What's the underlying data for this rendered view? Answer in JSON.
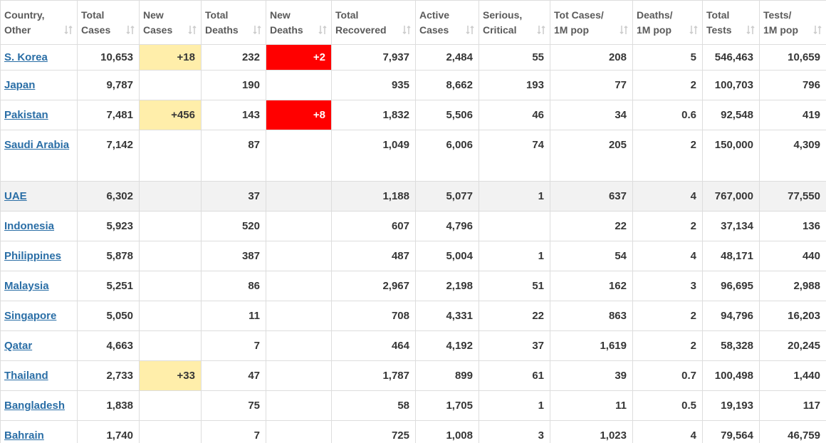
{
  "table": {
    "headers": [
      [
        "Country,",
        "Other"
      ],
      [
        "Total",
        "Cases"
      ],
      [
        "New",
        "Cases"
      ],
      [
        "Total",
        "Deaths"
      ],
      [
        "New",
        "Deaths"
      ],
      [
        "Total",
        "Recovered"
      ],
      [
        "Active",
        "Cases"
      ],
      [
        "Serious,",
        "Critical"
      ],
      [
        "Tot Cases/",
        "1M pop"
      ],
      [
        "Deaths/",
        "1M pop"
      ],
      [
        "Total",
        "Tests"
      ],
      [
        "Tests/",
        "1M pop"
      ]
    ],
    "rows": [
      [
        "S. Korea",
        "10,653",
        "+18",
        "232",
        "+2",
        "7,937",
        "2,484",
        "55",
        "208",
        "5",
        "546,463",
        "10,659"
      ],
      [
        "Japan",
        "9,787",
        null,
        "190",
        null,
        "935",
        "8,662",
        "193",
        "77",
        "2",
        "100,703",
        "796"
      ],
      [
        "Pakistan",
        "7,481",
        "+456",
        "143",
        "+8",
        "1,832",
        "5,506",
        "46",
        "34",
        "0.6",
        "92,548",
        "419"
      ],
      [
        "Saudi Arabia",
        "7,142",
        null,
        "87",
        null,
        "1,049",
        "6,006",
        "74",
        "205",
        "2",
        "150,000",
        "4,309"
      ],
      [
        "UAE",
        "6,302",
        null,
        "37",
        null,
        "1,188",
        "5,077",
        "1",
        "637",
        "4",
        "767,000",
        "77,550"
      ],
      [
        "Indonesia",
        "5,923",
        null,
        "520",
        null,
        "607",
        "4,796",
        null,
        "22",
        "2",
        "37,134",
        "136"
      ],
      [
        "Philippines",
        "5,878",
        null,
        "387",
        null,
        "487",
        "5,004",
        "1",
        "54",
        "4",
        "48,171",
        "440"
      ],
      [
        "Malaysia",
        "5,251",
        null,
        "86",
        null,
        "2,967",
        "2,198",
        "51",
        "162",
        "3",
        "96,695",
        "2,988"
      ],
      [
        "Singapore",
        "5,050",
        null,
        "11",
        null,
        "708",
        "4,331",
        "22",
        "863",
        "2",
        "94,796",
        "16,203"
      ],
      [
        "Qatar",
        "4,663",
        null,
        "7",
        null,
        "464",
        "4,192",
        "37",
        "1,619",
        "2",
        "58,328",
        "20,245"
      ],
      [
        "Thailand",
        "2,733",
        "+33",
        "47",
        null,
        "1,787",
        "899",
        "61",
        "39",
        "0.7",
        "100,498",
        "1,440"
      ],
      [
        "Bangladesh",
        "1,838",
        null,
        "75",
        null,
        "58",
        "1,705",
        "1",
        "11",
        "0.5",
        "19,193",
        "117"
      ],
      [
        "Bahrain",
        "1,740",
        null,
        "7",
        null,
        "725",
        "1,008",
        "3",
        "1,023",
        "4",
        "79,564",
        "46,759"
      ]
    ]
  }
}
